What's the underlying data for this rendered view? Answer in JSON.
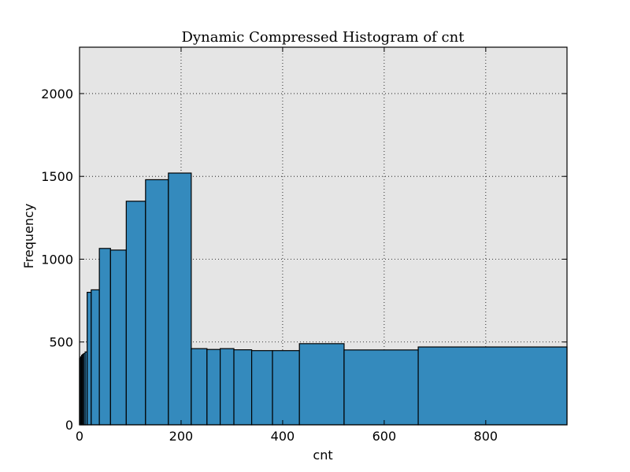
{
  "chart_data": {
    "type": "bar",
    "title": "Dynamic Compressed Histogram of cnt",
    "xlabel": "cnt",
    "ylabel": "Frequency",
    "xlim": [
      0,
      960
    ],
    "ylim": [
      0,
      2280
    ],
    "xticks": [
      0,
      200,
      400,
      600,
      800
    ],
    "yticks": [
      0,
      500,
      1000,
      1500,
      2000
    ],
    "grid": true,
    "bar_color": "#348abd",
    "background_color": "#e5e5e5",
    "bins": [
      {
        "x0": 0,
        "x1": 2,
        "value": 400
      },
      {
        "x0": 2,
        "x1": 4,
        "value": 410
      },
      {
        "x0": 4,
        "x1": 6,
        "value": 420
      },
      {
        "x0": 6,
        "x1": 8,
        "value": 425
      },
      {
        "x0": 8,
        "x1": 11,
        "value": 430
      },
      {
        "x0": 11,
        "x1": 15,
        "value": 440
      },
      {
        "x0": 15,
        "x1": 23,
        "value": 800
      },
      {
        "x0": 23,
        "x1": 39,
        "value": 815
      },
      {
        "x0": 39,
        "x1": 61,
        "value": 1065
      },
      {
        "x0": 61,
        "x1": 92,
        "value": 1055
      },
      {
        "x0": 92,
        "x1": 130,
        "value": 1350
      },
      {
        "x0": 130,
        "x1": 175,
        "value": 1480
      },
      {
        "x0": 175,
        "x1": 220,
        "value": 1520
      },
      {
        "x0": 220,
        "x1": 251,
        "value": 460
      },
      {
        "x0": 251,
        "x1": 277,
        "value": 455
      },
      {
        "x0": 277,
        "x1": 304,
        "value": 460
      },
      {
        "x0": 304,
        "x1": 339,
        "value": 453
      },
      {
        "x0": 339,
        "x1": 380,
        "value": 448
      },
      {
        "x0": 380,
        "x1": 433,
        "value": 448
      },
      {
        "x0": 433,
        "x1": 521,
        "value": 490
      },
      {
        "x0": 521,
        "x1": 667,
        "value": 452
      },
      {
        "x0": 667,
        "x1": 960,
        "value": 470
      }
    ]
  }
}
